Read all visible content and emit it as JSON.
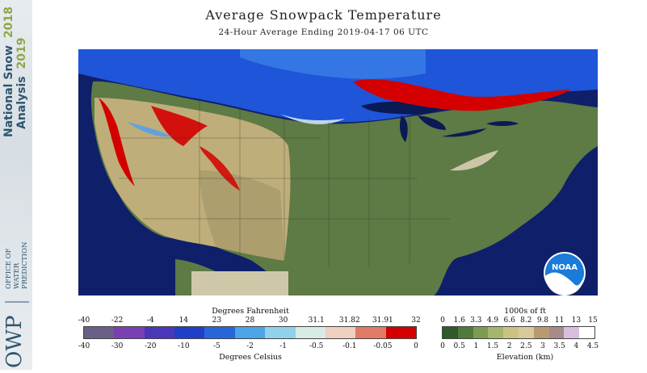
{
  "sidebar": {
    "line1": "National Snow",
    "line1_year": "2018",
    "line2": "Analysis",
    "line2_year": "2019",
    "org_abbr": "OWP",
    "org_line1": "OFFICE OF",
    "org_line2": "WATER",
    "org_line3": "PREDICTION"
  },
  "header": {
    "title": "Average Snowpack Temperature",
    "subtitle": "24-Hour Average Ending 2019-04-17 06 UTC"
  },
  "map": {
    "logo_text": "NOAA"
  },
  "legend_temp": {
    "title_top": "Degrees Fahrenheit",
    "title_bottom": "Degrees Celsius",
    "fahrenheit_ticks": [
      "-40",
      "-22",
      "-4",
      "14",
      "23",
      "28",
      "30",
      "31.1",
      "31.82",
      "31.91",
      "32"
    ],
    "celsius_ticks": [
      "-40",
      "-30",
      "-20",
      "-10",
      "-5",
      "-2",
      "-1",
      "-0.5",
      "-0.1",
      "-0.05",
      "0"
    ],
    "colors": [
      "#6a5f86",
      "#7b3fb4",
      "#4a36b8",
      "#1f3fc8",
      "#2766d8",
      "#4aa4e6",
      "#8fd2ec",
      "#d8ece6",
      "#eecfc0",
      "#e07a66",
      "#d40000"
    ]
  },
  "legend_elev": {
    "title_top": "1000s of ft",
    "title_bottom": "Elevation (km)",
    "ft_ticks": [
      "0",
      "1.6",
      "3.3",
      "4.9",
      "6.6",
      "8.2",
      "9.8",
      "11",
      "13",
      "15"
    ],
    "km_ticks": [
      "0",
      "0.5",
      "1",
      "1.5",
      "2",
      "2.5",
      "3",
      "3.5",
      "4",
      "4.5"
    ],
    "colors": [
      "#2f5a2a",
      "#4f7a3c",
      "#7d9a52",
      "#a7b46c",
      "#c9c37f",
      "#d8c99a",
      "#b89a72",
      "#a78a8a",
      "#d8bfe0",
      "#ffffff"
    ]
  }
}
